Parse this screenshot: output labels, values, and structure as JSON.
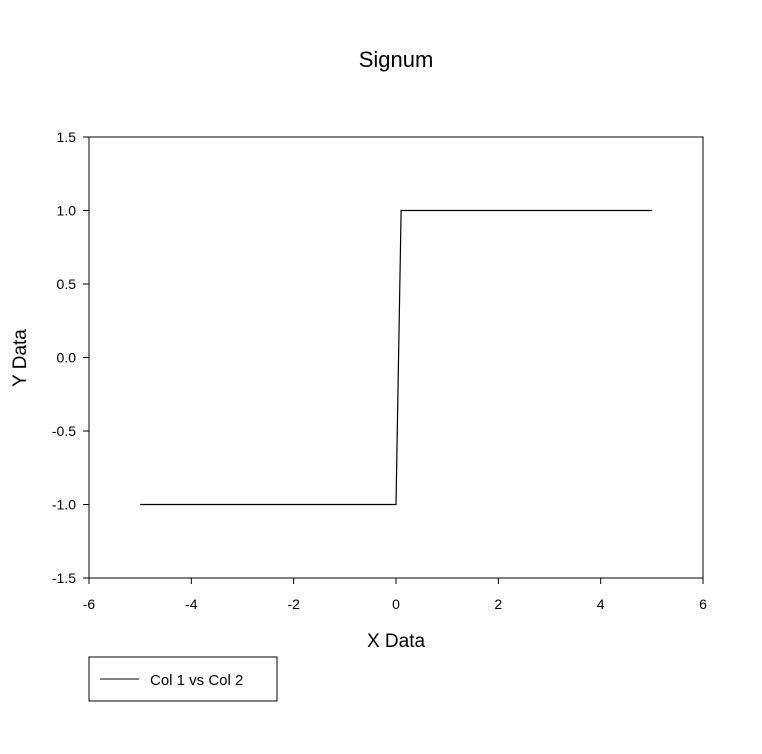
{
  "chart_data": {
    "type": "line",
    "title": "Signum",
    "xlabel": "X Data",
    "ylabel": "Y Data",
    "xlim": [
      -6,
      6
    ],
    "ylim": [
      -1.5,
      1.5
    ],
    "xticks": [
      -6,
      -4,
      -2,
      0,
      2,
      4,
      6
    ],
    "yticks": [
      -1.5,
      -1.0,
      -0.5,
      0.0,
      0.5,
      1.0,
      1.5
    ],
    "x_tick_labels": [
      "-6",
      "-4",
      "-2",
      "0",
      "2",
      "4",
      "6"
    ],
    "y_tick_labels": [
      "-1.5",
      "-1.0",
      "-0.5",
      "0.0",
      "0.5",
      "1.0",
      "1.5"
    ],
    "grid": false,
    "legend_position": "bottom-left",
    "series": [
      {
        "name": "Col 1 vs Col 2",
        "color": "#000000",
        "x": [
          -5,
          0,
          0.1,
          5
        ],
        "y": [
          -1,
          -1,
          1,
          1
        ]
      }
    ]
  }
}
